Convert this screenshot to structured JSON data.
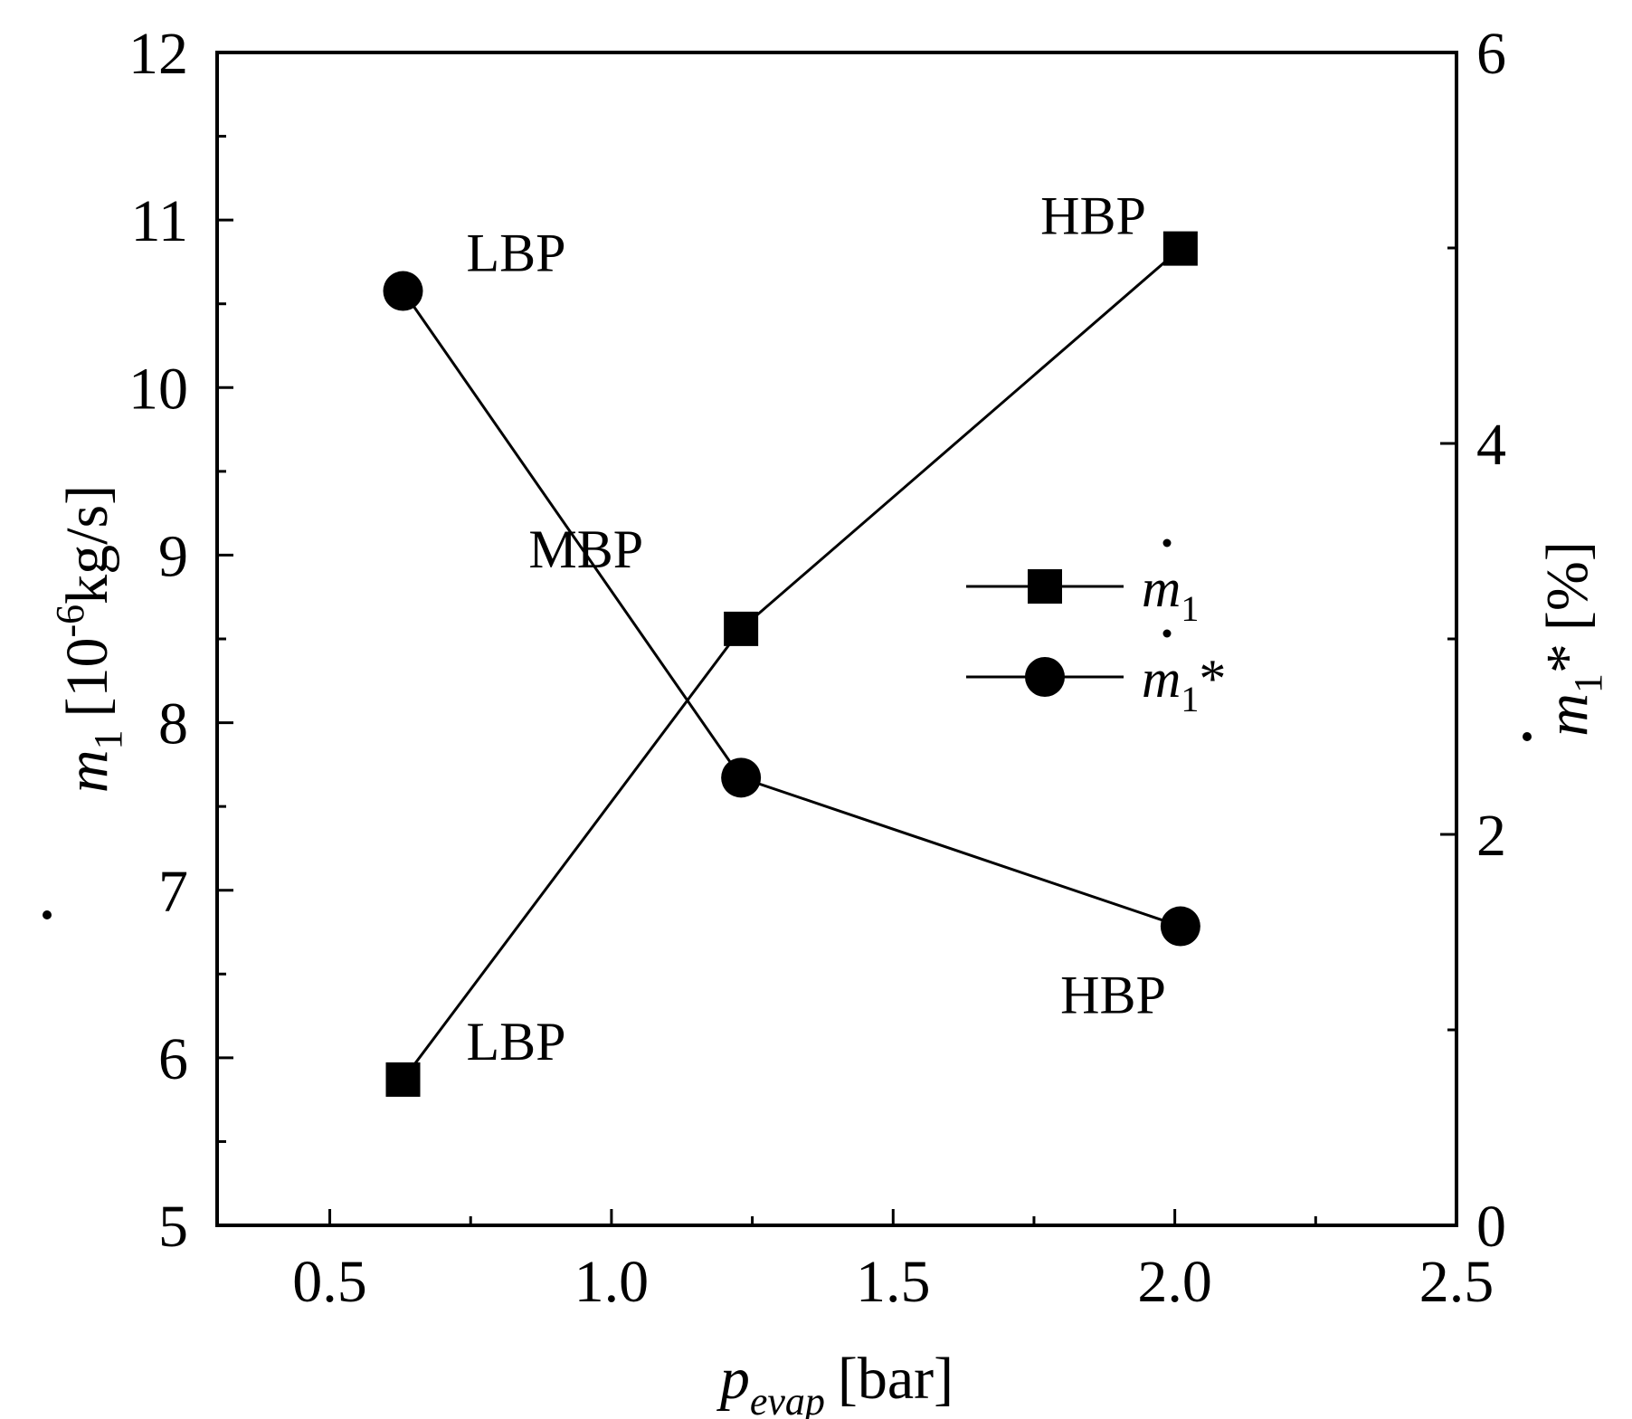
{
  "chart_data": {
    "type": "line",
    "xlabel": {
      "main": "p",
      "sub": "evap",
      "unit": "[bar]"
    },
    "ylabel_left": {
      "main": "m",
      "sub": "1",
      "unit": "[10",
      "exp": "-6",
      "unit_rest": "kg/s]"
    },
    "ylabel_right": {
      "main": "m",
      "sub": "1",
      "star": "*",
      "unit": "[%]"
    },
    "xlim": [
      0.3,
      2.5
    ],
    "ylim_left": [
      5,
      12
    ],
    "ylim_right": [
      0,
      6
    ],
    "x_ticks": [
      "0.5",
      "1.0",
      "1.5",
      "2.0",
      "2.5"
    ],
    "x_tick_values": [
      0.5,
      1.0,
      1.5,
      2.0,
      2.5
    ],
    "y_left_ticks": [
      "5",
      "6",
      "7",
      "8",
      "9",
      "10",
      "11",
      "12"
    ],
    "y_left_tick_values": [
      5,
      6,
      7,
      8,
      9,
      10,
      11,
      12
    ],
    "y_right_ticks": [
      "0",
      "2",
      "4",
      "6"
    ],
    "y_right_tick_values": [
      0,
      2,
      4,
      6
    ],
    "grid": false,
    "legend_position": "center-right",
    "series": [
      {
        "legend_main": "m",
        "legend_sub": "1",
        "legend_suffix": "",
        "marker": "square",
        "axis": "left",
        "x": [
          0.63,
          1.23,
          2.01
        ],
        "y": [
          5.87,
          8.56,
          10.83
        ]
      },
      {
        "legend_main": "m",
        "legend_sub": "1",
        "legend_suffix": "*",
        "marker": "circle",
        "axis": "right",
        "x": [
          0.63,
          1.23,
          2.01
        ],
        "y": [
          4.78,
          2.29,
          1.53
        ]
      }
    ],
    "annotations": [
      {
        "text": "LBP",
        "x": 0.63,
        "series": 1
      },
      {
        "text": "LBP",
        "x": 0.63,
        "series": 0
      },
      {
        "text": "MBP",
        "x": 1.23,
        "series": 0
      },
      {
        "text": "HBP",
        "x": 2.01,
        "series": 0
      },
      {
        "text": "HBP",
        "x": 2.01,
        "series": 1
      }
    ]
  }
}
